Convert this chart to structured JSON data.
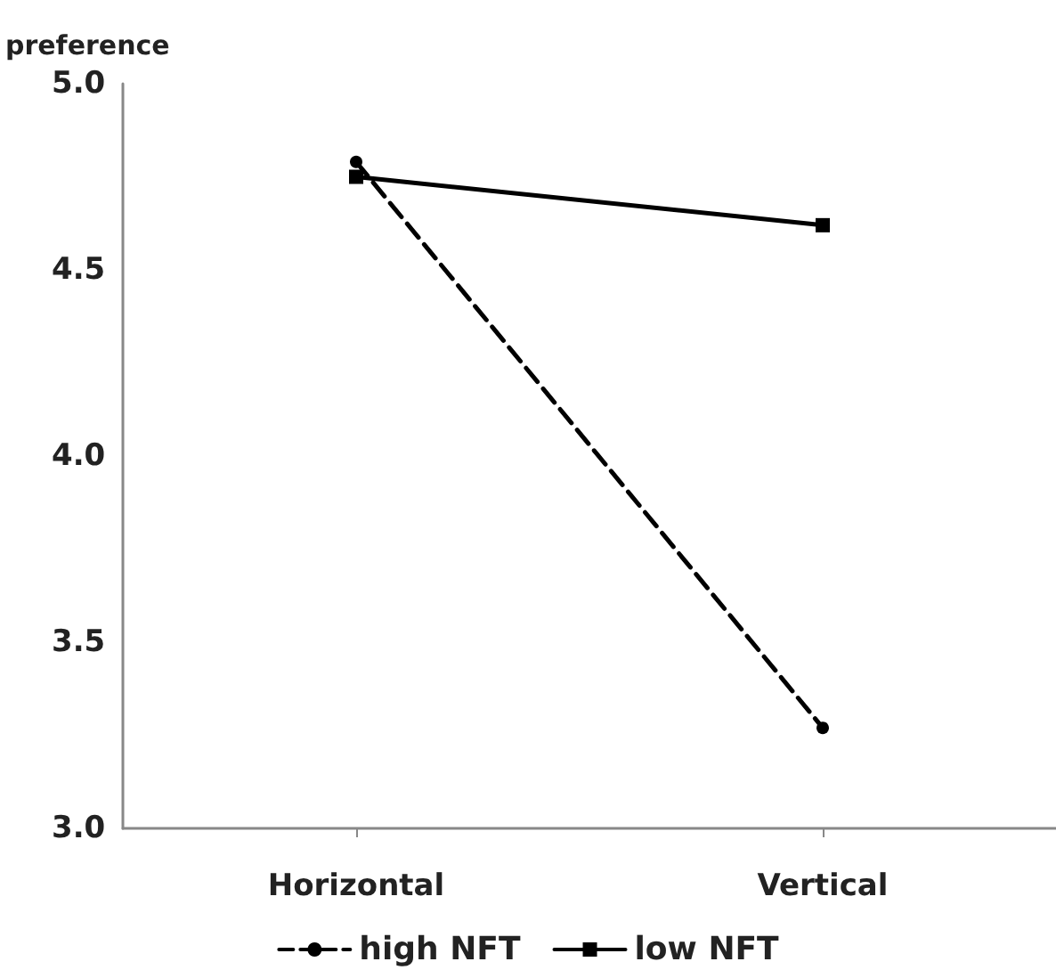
{
  "chart_data": {
    "type": "line",
    "ylabel": "preference",
    "categories": [
      "Horizontal",
      "Vertical"
    ],
    "series": [
      {
        "name": "high NFT",
        "color": "#000000",
        "values": [
          4.79,
          3.27
        ],
        "marker": "circle",
        "line_style": "dashed"
      },
      {
        "name": "low NFT",
        "color": "#000000",
        "values": [
          4.75,
          4.62
        ],
        "marker": "square",
        "line_style": "solid"
      }
    ],
    "ylim": [
      3.0,
      5.0
    ],
    "yticks": [
      {
        "value": 3,
        "label": "3.0"
      },
      {
        "value": 3.5,
        "label": "3.5"
      },
      {
        "value": 4,
        "label": "4.0"
      },
      {
        "value": 4.5,
        "label": "4.5"
      },
      {
        "value": 5,
        "label": "5.0"
      }
    ],
    "grid": false,
    "legend": "bottom"
  }
}
